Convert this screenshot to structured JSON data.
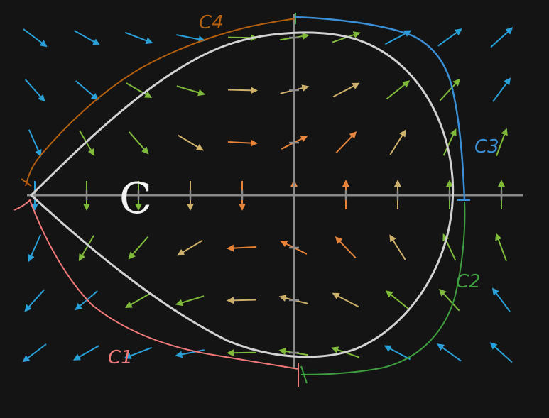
{
  "curve_label": "C",
  "segment_labels": {
    "c1": "C1",
    "c2": "C2",
    "c3": "C3",
    "c4": "C4"
  },
  "colors": {
    "background": "#141414",
    "axes": "#8a8a8a",
    "curve": "#d2d2d2",
    "c1": "#f07a7a",
    "c2": "#3f9e3f",
    "c3": "#3a8fd6",
    "c4": "#b35f0f",
    "arrow_blue": "#2aa0d8",
    "arrow_green": "#7fba3a",
    "arrow_tan": "#cdb06a",
    "arrow_orange": "#e8843a"
  }
}
